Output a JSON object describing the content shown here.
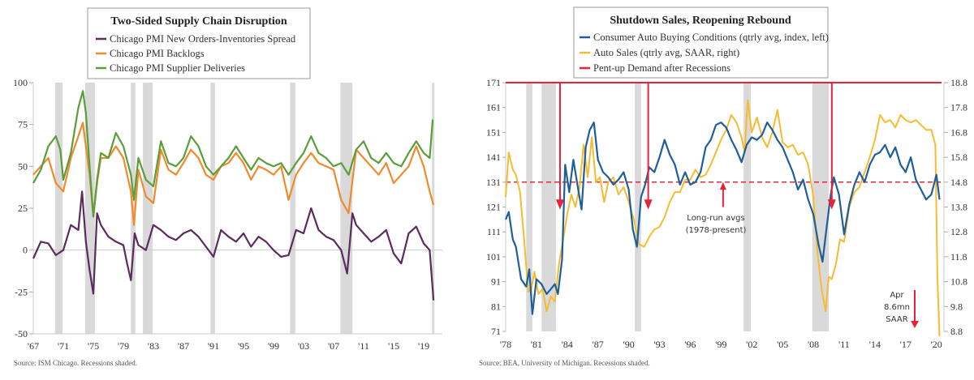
{
  "chart_data": [
    {
      "type": "line",
      "title": "Two-Sided Supply Chain Disruption",
      "source": "Source:  ISM Chicago. Recessions shaded.",
      "xlabel": "",
      "ylabel": "",
      "xlim": [
        1967,
        2020.4
      ],
      "ylim": [
        -50,
        100
      ],
      "yticks": [
        100,
        75,
        50,
        25,
        0,
        -25,
        -50
      ],
      "ytick_labels": [
        "100",
        "75",
        "50",
        "25",
        "0",
        "-25",
        "-50"
      ],
      "xticks": [
        1967,
        1971,
        1975,
        1979,
        1983,
        1987,
        1991,
        1995,
        1999,
        2003,
        2007,
        2011,
        2015,
        2019
      ],
      "xtick_labels": [
        "'67",
        "'71",
        "'75",
        "'79",
        "'83",
        "'87",
        "'91",
        "'95",
        "'99",
        "'03",
        "'07",
        "'11",
        "'15",
        "'19"
      ],
      "legend_position": "top-center",
      "recessions": [
        [
          1969.9,
          1970.9
        ],
        [
          1973.9,
          1975.2
        ],
        [
          1980.0,
          1980.6
        ],
        [
          1981.6,
          1982.9
        ],
        [
          1990.6,
          1991.2
        ],
        [
          2001.2,
          2001.9
        ],
        [
          2007.9,
          2009.5
        ],
        [
          2020.1,
          2020.4
        ]
      ],
      "series": [
        {
          "name": "Chicago PMI New Orders-Inventories Spread",
          "color": "#5b2a5e",
          "x": [
            1967,
            1968,
            1969,
            1970,
            1971,
            1972,
            1973,
            1973.5,
            1974,
            1974.5,
            1975,
            1975.5,
            1976,
            1977,
            1978,
            1979,
            1979.5,
            1980,
            1980.5,
            1981,
            1982,
            1983,
            1984,
            1985,
            1986,
            1987,
            1988,
            1989,
            1990,
            1991,
            1992,
            1993,
            1994,
            1995,
            1996,
            1997,
            1998,
            1999,
            2000,
            2001,
            2002,
            2003,
            2004,
            2005,
            2006,
            2007,
            2008,
            2008.8,
            2009.5,
            2010,
            2011,
            2012,
            2013,
            2014,
            2015,
            2016,
            2017,
            2018,
            2019,
            2019.8,
            2020.3
          ],
          "values": [
            -5,
            5,
            4,
            -3,
            0,
            15,
            12,
            35,
            5,
            -12,
            -26,
            22,
            15,
            8,
            5,
            3,
            -8,
            -18,
            10,
            3,
            0,
            15,
            12,
            8,
            6,
            10,
            12,
            8,
            2,
            -4,
            12,
            8,
            5,
            10,
            2,
            8,
            5,
            0,
            -4,
            -3,
            12,
            10,
            25,
            12,
            8,
            6,
            0,
            -14,
            22,
            15,
            10,
            5,
            8,
            12,
            -2,
            -8,
            10,
            14,
            4,
            0,
            -30
          ]
        },
        {
          "name": "Chicago PMI Backlogs",
          "color": "#f08a2c",
          "x": [
            1967,
            1968,
            1969,
            1970,
            1971,
            1972,
            1973,
            1973.6,
            1974,
            1974.5,
            1975,
            1975.5,
            1976,
            1977,
            1978,
            1979,
            1980,
            1980.4,
            1981,
            1982,
            1983,
            1984,
            1985,
            1986,
            1987,
            1988,
            1989,
            1990,
            1991,
            1992,
            1993,
            1994,
            1995,
            1996,
            1997,
            1998,
            1999,
            2000,
            2001,
            2002,
            2003,
            2004,
            2005,
            2006,
            2007,
            2008,
            2009,
            2010,
            2011,
            2012,
            2013,
            2014,
            2015,
            2016,
            2017,
            2018,
            2019,
            2019.8,
            2020.3
          ],
          "values": [
            45,
            50,
            55,
            40,
            35,
            55,
            68,
            76,
            62,
            45,
            20,
            40,
            55,
            55,
            62,
            55,
            35,
            15,
            48,
            32,
            28,
            60,
            48,
            45,
            52,
            60,
            55,
            45,
            42,
            50,
            52,
            58,
            52,
            42,
            50,
            48,
            45,
            50,
            30,
            45,
            52,
            58,
            52,
            50,
            48,
            30,
            22,
            60,
            55,
            50,
            45,
            52,
            40,
            45,
            50,
            62,
            50,
            35,
            27
          ]
        },
        {
          "name": "Chicago PMI Supplier Deliveries",
          "color": "#5a9e3a",
          "x": [
            1967,
            1968,
            1969,
            1970,
            1970.6,
            1971,
            1972,
            1973,
            1973.6,
            1974,
            1974.5,
            1975,
            1975.5,
            1976,
            1977,
            1978,
            1979,
            1980,
            1980.4,
            1981,
            1982,
            1983,
            1984,
            1985,
            1986,
            1987,
            1988,
            1989,
            1990,
            1991,
            1992,
            1993,
            1994,
            1995,
            1996,
            1997,
            1998,
            1999,
            2000,
            2001,
            2002,
            2003,
            2004,
            2005,
            2006,
            2007,
            2008,
            2009,
            2010,
            2011,
            2012,
            2013,
            2014,
            2015,
            2016,
            2017,
            2018,
            2019,
            2019.8,
            2020.2
          ],
          "values": [
            40,
            48,
            62,
            68,
            60,
            42,
            58,
            85,
            95,
            82,
            50,
            20,
            42,
            58,
            55,
            70,
            62,
            45,
            30,
            55,
            42,
            38,
            65,
            52,
            50,
            55,
            68,
            62,
            50,
            45,
            50,
            55,
            62,
            55,
            48,
            55,
            52,
            50,
            52,
            45,
            52,
            58,
            68,
            58,
            55,
            50,
            52,
            45,
            60,
            65,
            55,
            52,
            58,
            52,
            50,
            58,
            65,
            58,
            55,
            78
          ]
        }
      ]
    },
    {
      "type": "line",
      "title": "Shutdown Sales, Reopening Rebound",
      "source": "Source:  BEA, University of Michigan. Recessions shaded.",
      "xlabel": "",
      "ylabel_left": "",
      "ylabel_right": "",
      "xlim": [
        1978,
        2020.5
      ],
      "ylim_left": [
        71,
        171
      ],
      "ylim_right": [
        8.8,
        18.8
      ],
      "yticks_left": [
        171,
        161,
        151,
        141,
        131,
        121,
        111,
        101,
        91,
        81,
        71
      ],
      "ytick_labels_left": [
        "171",
        "161",
        "151",
        "141",
        "131",
        "121",
        "111",
        "101",
        "91",
        "81",
        "71"
      ],
      "yticks_right": [
        18.8,
        17.8,
        16.8,
        15.8,
        14.8,
        13.8,
        12.8,
        11.8,
        10.8,
        9.8,
        8.8
      ],
      "ytick_labels_right": [
        "18.8",
        "17.8",
        "16.8",
        "15.8",
        "14.8",
        "13.8",
        "12.8",
        "11.8",
        "10.8",
        "9.8",
        "8.8"
      ],
      "xticks": [
        1978,
        1981,
        1984,
        1987,
        1990,
        1993,
        1996,
        1999,
        2002,
        2005,
        2008,
        2011,
        2014,
        2017,
        2020
      ],
      "xtick_labels": [
        "'78",
        "'81",
        "'84",
        "'87",
        "'90",
        "'93",
        "'96",
        "'99",
        "'02",
        "'05",
        "'08",
        "'11",
        "'14",
        "'17",
        "'20"
      ],
      "legend_position": "top-center",
      "recessions": [
        [
          1980.0,
          1980.6
        ],
        [
          1981.5,
          1982.9
        ],
        [
          1990.6,
          1991.2
        ],
        [
          2001.2,
          2001.9
        ],
        [
          2007.9,
          2009.5
        ]
      ],
      "long_run_avg_left": 131,
      "pent_up_demand_years": [
        1983.3,
        1991.9,
        2009.8
      ],
      "annotations": [
        {
          "text_lines": [
            "Long-run avgs",
            "(1978-present)"
          ],
          "x": 1999,
          "y": 118
        },
        {
          "text_lines": [
            "Apr",
            "8.6mn",
            "SAAR"
          ],
          "x": 2018.3,
          "y": 80
        }
      ],
      "series": [
        {
          "name": "Consumer Auto Buying Conditions (qtrly avg, index, left)",
          "axis": "left",
          "color": "#1f5f99",
          "x": [
            1978,
            1978.3,
            1978.7,
            1979,
            1979.5,
            1980,
            1980.3,
            1980.6,
            1981,
            1981.5,
            1982,
            1982.4,
            1982.8,
            1983.1,
            1983.5,
            1983.8,
            1984.2,
            1984.6,
            1985,
            1985.4,
            1985.8,
            1986.2,
            1986.6,
            1987,
            1987.5,
            1988,
            1988.5,
            1989,
            1989.5,
            1990,
            1990.4,
            1990.8,
            1991.2,
            1991.6,
            1992,
            1992.5,
            1993,
            1993.5,
            1994,
            1994.5,
            1995,
            1995.5,
            1996,
            1996.5,
            1997,
            1997.5,
            1998,
            1998.5,
            1999,
            1999.5,
            2000,
            2000.5,
            2001,
            2001.5,
            2002,
            2002.5,
            2003,
            2003.5,
            2004,
            2004.5,
            2005,
            2005.5,
            2006,
            2006.5,
            2007,
            2007.5,
            2008,
            2008.5,
            2008.9,
            2009.3,
            2009.7,
            2010,
            2010.5,
            2011,
            2011.5,
            2012,
            2012.5,
            2013,
            2013.5,
            2014,
            2014.5,
            2015,
            2015.5,
            2016,
            2016.5,
            2017,
            2017.5,
            2018,
            2018.5,
            2019,
            2019.5,
            2020,
            2020.3
          ],
          "values": [
            116,
            119,
            108,
            105,
            92,
            89,
            96,
            78,
            92,
            90,
            86,
            88,
            90,
            86,
            100,
            138,
            127,
            140,
            130,
            120,
            145,
            152,
            155,
            140,
            135,
            133,
            130,
            132,
            135,
            128,
            112,
            105,
            125,
            130,
            137,
            135,
            141,
            148,
            142,
            138,
            130,
            135,
            130,
            131,
            135,
            145,
            148,
            154,
            155,
            153,
            148,
            144,
            139,
            146,
            149,
            148,
            150,
            155,
            152,
            148,
            145,
            140,
            135,
            128,
            132,
            124,
            118,
            106,
            99,
            113,
            126,
            133,
            126,
            110,
            122,
            130,
            135,
            131,
            138,
            142,
            143,
            146,
            141,
            145,
            138,
            135,
            141,
            132,
            128,
            124,
            126,
            134,
            124
          ]
        },
        {
          "name": "Auto Sales (qtrly avg, SAAR, right)",
          "axis": "right",
          "color": "#f7bb31",
          "x": [
            1978,
            1978.3,
            1978.7,
            1979,
            1979.4,
            1979.8,
            1980.2,
            1980.5,
            1980.8,
            1981.2,
            1981.6,
            1982,
            1982.4,
            1982.8,
            1983.2,
            1983.6,
            1984,
            1984.4,
            1984.8,
            1985.2,
            1985.6,
            1986,
            1986.4,
            1986.8,
            1987.2,
            1987.6,
            1988,
            1988.5,
            1989,
            1989.5,
            1990,
            1990.5,
            1991,
            1991.5,
            1992,
            1992.5,
            1993,
            1993.5,
            1994,
            1994.5,
            1995,
            1995.5,
            1996,
            1996.5,
            1997,
            1997.5,
            1998,
            1998.5,
            1999,
            1999.5,
            2000,
            2000.5,
            2001,
            2001.3,
            2001.6,
            2002,
            2002.5,
            2003,
            2003.5,
            2004,
            2004.5,
            2005,
            2005.5,
            2006,
            2006.5,
            2007,
            2007.5,
            2008,
            2008.4,
            2008.8,
            2009.2,
            2009.5,
            2009.8,
            2010.2,
            2010.6,
            2011,
            2011.5,
            2012,
            2012.5,
            2013,
            2013.5,
            2014,
            2014.5,
            2015,
            2015.5,
            2016,
            2016.5,
            2017,
            2017.5,
            2018,
            2018.5,
            2019,
            2019.5,
            2019.9,
            2020.1,
            2020.3
          ],
          "values": [
            14.2,
            16.0,
            15.3,
            15.1,
            14.4,
            12.5,
            10.4,
            10.5,
            11.2,
            10.3,
            10.5,
            9.6,
            10.2,
            10.0,
            11.5,
            12.5,
            13.5,
            14.3,
            13.8,
            14.6,
            16.3,
            15.0,
            16.6,
            14.8,
            15.0,
            14.0,
            14.8,
            15.0,
            14.3,
            14.6,
            14.0,
            13.3,
            12.3,
            12.2,
            12.6,
            12.9,
            13.0,
            13.4,
            14.0,
            14.4,
            14.4,
            14.9,
            14.9,
            15.3,
            15.0,
            15.1,
            15.5,
            16.0,
            16.5,
            16.9,
            17.5,
            17.2,
            16.6,
            16.0,
            18.1,
            16.8,
            17.4,
            16.6,
            16.2,
            16.8,
            17.7,
            16.4,
            16.2,
            16.3,
            15.9,
            16.0,
            15.5,
            14.2,
            12.0,
            10.5,
            9.6,
            11.0,
            10.9,
            11.5,
            12.5,
            12.4,
            13.8,
            14.4,
            14.6,
            15.2,
            15.8,
            16.5,
            17.5,
            17.2,
            17.3,
            17.0,
            17.5,
            17.3,
            17.2,
            17.3,
            17.1,
            16.9,
            16.9,
            16.3,
            11.0,
            8.6
          ]
        }
      ]
    }
  ],
  "legend_labels": {
    "left": [
      "Chicago PMI New Orders-Inventories Spread",
      "Chicago PMI Backlogs",
      "Chicago PMI Supplier Deliveries"
    ],
    "right": [
      "Consumer Auto Buying Conditions (qtrly avg, index, left)",
      "Auto Sales (qtrly avg, SAAR, right)",
      "Pent-up Demand after Recessions"
    ],
    "pent_up_color": "#e8223a"
  }
}
